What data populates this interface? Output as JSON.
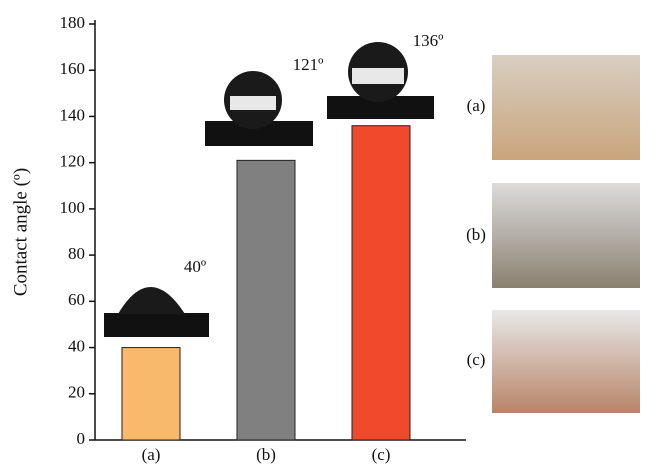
{
  "chart_data": {
    "type": "bar",
    "y_label": "Contact angle (º)",
    "categories": [
      "(a)",
      "(b)",
      "(c)"
    ],
    "values": [
      40,
      121,
      136
    ],
    "value_labels": [
      "40º",
      "121º",
      "136º"
    ],
    "colors": [
      "#f9b96a",
      "#808080",
      "#ee4a2b"
    ],
    "ylim": [
      0,
      180
    ],
    "yticks": [
      0,
      20,
      40,
      60,
      80,
      100,
      120,
      140,
      160,
      180
    ],
    "photo_labels": [
      "(a)",
      "(b)",
      "(c)"
    ]
  }
}
